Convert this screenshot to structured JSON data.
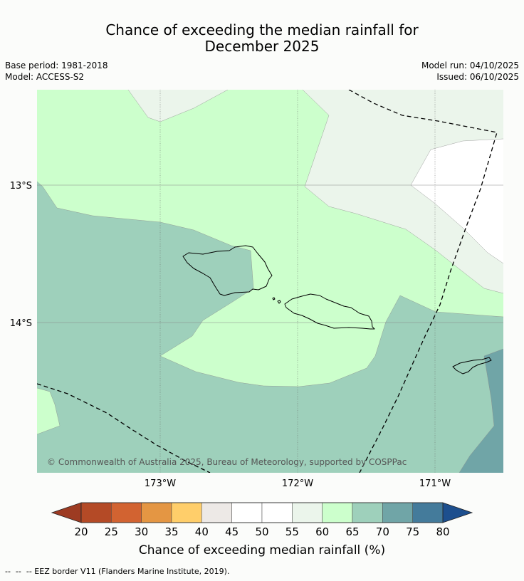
{
  "title": {
    "line1": "Chance of exceeding the median rainfall for",
    "line2": "December 2025"
  },
  "meta_left": {
    "base_period": "Base period: 1981-2018",
    "model": "Model: ACCESS-S2"
  },
  "meta_right": {
    "model_run": "Model run: 04/10/2025",
    "issued": "Issued: 06/10/2025"
  },
  "map": {
    "lat_labels": [
      "13°S",
      "14°S"
    ],
    "lon_labels": [
      "173°W",
      "172°W",
      "171°W"
    ],
    "copyright": "© Commonwealth of Australia 2025, Bureau of Meteorology, supported by COSPPac",
    "categories": {
      "c55_60": "#ebf5eb",
      "c50_55": "#ffffff",
      "c60_65": "#ccffcc",
      "c65_70": "#9ed0bb",
      "c70_75": "#70a5a7"
    }
  },
  "colorbar": {
    "ticks": [
      "20",
      "25",
      "30",
      "35",
      "40",
      "45",
      "50",
      "55",
      "60",
      "65",
      "70",
      "75",
      "80"
    ],
    "low_color": "#9d3b22",
    "high_color": "#1d4f8e",
    "colors": [
      "#b44a26",
      "#d26331",
      "#e49643",
      "#ffce6a",
      "#ede9e6",
      "#ffffff",
      "#ffffff",
      "#ebf5eb",
      "#ccffcc",
      "#9ed0bb",
      "#70a5a7",
      "#447b9b"
    ],
    "label": "Chance of exceeding median rainfall (%)"
  },
  "footer": {
    "legend_text": "--  --  -- EEZ border V11 (Flanders Marine Institute, 2019)."
  }
}
